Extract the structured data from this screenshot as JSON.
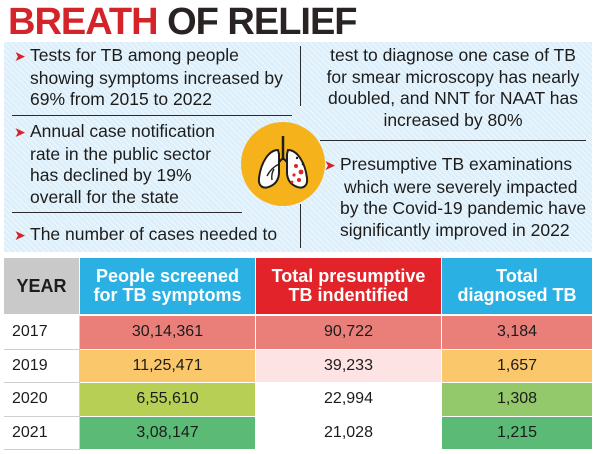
{
  "headline": {
    "part1": "BREATH",
    "part2": "OF RELIEF"
  },
  "info": {
    "left_bullets": [
      {
        "line1": "Tests for TB among people",
        "line2": "showing symptoms increased by",
        "line3": "69% from 2015 to 2022"
      },
      {
        "line1": "Annual case notification",
        "line2": "rate in the public sector",
        "line3": "has declined by 19%",
        "line4": "overall for the state"
      },
      {
        "line1": "The number of cases needed to"
      }
    ],
    "right_continuation": {
      "line1": "test to diagnose one case of TB",
      "line2": "for smear microscopy has nearly",
      "line3": "doubled, and NNT for NAAT has",
      "line4": "increased by 80%"
    },
    "right_bullet": {
      "line1": "Presumptive TB examinations",
      "line2": "which were severely impacted",
      "line3": "by the Covid-19 pandemic have",
      "line4": "significantly improved in 2022"
    },
    "icon": "lungs-icon"
  },
  "table": {
    "headers": {
      "year": "YEAR",
      "screened": {
        "line1": "People screened",
        "line2": "for TB symptoms"
      },
      "presumptive": {
        "line1": "Total presumptive",
        "line2": "TB indentified"
      },
      "diagnosed": {
        "line1": "Total",
        "line2": "diagnosed TB"
      }
    },
    "header_colors": {
      "year": "#c9c9c9",
      "screened": "#2bb0e4",
      "presumptive": "#e2242a",
      "diagnosed": "#2bb0e4"
    },
    "rows": [
      {
        "year": "2017",
        "screened": "30,14,361",
        "presumptive": "90,722",
        "diagnosed": "3,184",
        "colors": {
          "screened": "#ea7f79",
          "presumptive": "#ea7f79",
          "diagnosed": "#ea7f79"
        }
      },
      {
        "year": "2019",
        "screened": "11,25,471",
        "presumptive": "39,233",
        "diagnosed": "1,657",
        "colors": {
          "screened": "#fbc76b",
          "presumptive": "#fde3e3",
          "diagnosed": "#fbc76b"
        }
      },
      {
        "year": "2020",
        "screened": "6,55,610",
        "presumptive": "22,994",
        "diagnosed": "1,308",
        "colors": {
          "screened": "#b8cf55",
          "presumptive": "#ffffff",
          "diagnosed": "#93c96a"
        }
      },
      {
        "year": "2021",
        "screened": "3,08,147",
        "presumptive": "21,028",
        "diagnosed": "1,215",
        "colors": {
          "screened": "#5bbb76",
          "presumptive": "#ffffff",
          "diagnosed": "#5bbb76"
        }
      }
    ]
  }
}
